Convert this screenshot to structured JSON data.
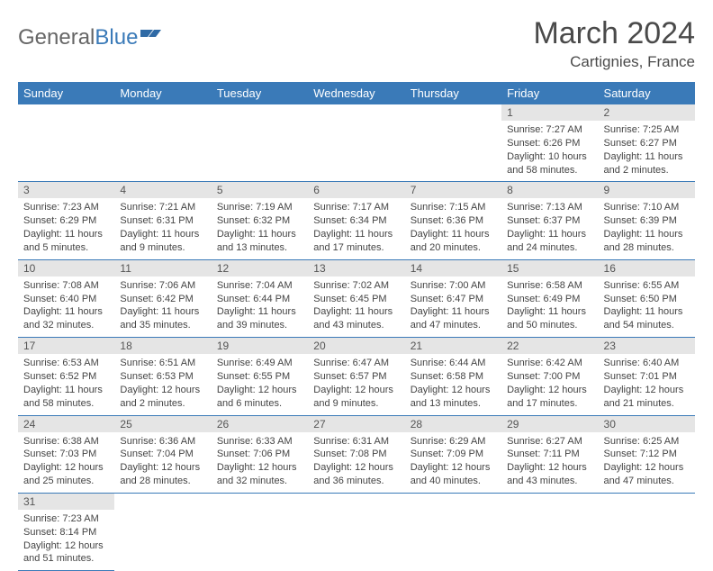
{
  "logo": {
    "general": "General",
    "blue": "Blue"
  },
  "title": "March 2024",
  "location": "Cartignies, France",
  "colors": {
    "header_bg": "#3a7ab8",
    "header_text": "#ffffff",
    "daynum_bg": "#e5e5e5",
    "border": "#3a7ab8",
    "text": "#444444"
  },
  "weekdays": [
    "Sunday",
    "Monday",
    "Tuesday",
    "Wednesday",
    "Thursday",
    "Friday",
    "Saturday"
  ],
  "weeks": [
    [
      null,
      null,
      null,
      null,
      null,
      {
        "n": "1",
        "sr": "Sunrise: 7:27 AM",
        "ss": "Sunset: 6:26 PM",
        "dl": "Daylight: 10 hours and 58 minutes."
      },
      {
        "n": "2",
        "sr": "Sunrise: 7:25 AM",
        "ss": "Sunset: 6:27 PM",
        "dl": "Daylight: 11 hours and 2 minutes."
      }
    ],
    [
      {
        "n": "3",
        "sr": "Sunrise: 7:23 AM",
        "ss": "Sunset: 6:29 PM",
        "dl": "Daylight: 11 hours and 5 minutes."
      },
      {
        "n": "4",
        "sr": "Sunrise: 7:21 AM",
        "ss": "Sunset: 6:31 PM",
        "dl": "Daylight: 11 hours and 9 minutes."
      },
      {
        "n": "5",
        "sr": "Sunrise: 7:19 AM",
        "ss": "Sunset: 6:32 PM",
        "dl": "Daylight: 11 hours and 13 minutes."
      },
      {
        "n": "6",
        "sr": "Sunrise: 7:17 AM",
        "ss": "Sunset: 6:34 PM",
        "dl": "Daylight: 11 hours and 17 minutes."
      },
      {
        "n": "7",
        "sr": "Sunrise: 7:15 AM",
        "ss": "Sunset: 6:36 PM",
        "dl": "Daylight: 11 hours and 20 minutes."
      },
      {
        "n": "8",
        "sr": "Sunrise: 7:13 AM",
        "ss": "Sunset: 6:37 PM",
        "dl": "Daylight: 11 hours and 24 minutes."
      },
      {
        "n": "9",
        "sr": "Sunrise: 7:10 AM",
        "ss": "Sunset: 6:39 PM",
        "dl": "Daylight: 11 hours and 28 minutes."
      }
    ],
    [
      {
        "n": "10",
        "sr": "Sunrise: 7:08 AM",
        "ss": "Sunset: 6:40 PM",
        "dl": "Daylight: 11 hours and 32 minutes."
      },
      {
        "n": "11",
        "sr": "Sunrise: 7:06 AM",
        "ss": "Sunset: 6:42 PM",
        "dl": "Daylight: 11 hours and 35 minutes."
      },
      {
        "n": "12",
        "sr": "Sunrise: 7:04 AM",
        "ss": "Sunset: 6:44 PM",
        "dl": "Daylight: 11 hours and 39 minutes."
      },
      {
        "n": "13",
        "sr": "Sunrise: 7:02 AM",
        "ss": "Sunset: 6:45 PM",
        "dl": "Daylight: 11 hours and 43 minutes."
      },
      {
        "n": "14",
        "sr": "Sunrise: 7:00 AM",
        "ss": "Sunset: 6:47 PM",
        "dl": "Daylight: 11 hours and 47 minutes."
      },
      {
        "n": "15",
        "sr": "Sunrise: 6:58 AM",
        "ss": "Sunset: 6:49 PM",
        "dl": "Daylight: 11 hours and 50 minutes."
      },
      {
        "n": "16",
        "sr": "Sunrise: 6:55 AM",
        "ss": "Sunset: 6:50 PM",
        "dl": "Daylight: 11 hours and 54 minutes."
      }
    ],
    [
      {
        "n": "17",
        "sr": "Sunrise: 6:53 AM",
        "ss": "Sunset: 6:52 PM",
        "dl": "Daylight: 11 hours and 58 minutes."
      },
      {
        "n": "18",
        "sr": "Sunrise: 6:51 AM",
        "ss": "Sunset: 6:53 PM",
        "dl": "Daylight: 12 hours and 2 minutes."
      },
      {
        "n": "19",
        "sr": "Sunrise: 6:49 AM",
        "ss": "Sunset: 6:55 PM",
        "dl": "Daylight: 12 hours and 6 minutes."
      },
      {
        "n": "20",
        "sr": "Sunrise: 6:47 AM",
        "ss": "Sunset: 6:57 PM",
        "dl": "Daylight: 12 hours and 9 minutes."
      },
      {
        "n": "21",
        "sr": "Sunrise: 6:44 AM",
        "ss": "Sunset: 6:58 PM",
        "dl": "Daylight: 12 hours and 13 minutes."
      },
      {
        "n": "22",
        "sr": "Sunrise: 6:42 AM",
        "ss": "Sunset: 7:00 PM",
        "dl": "Daylight: 12 hours and 17 minutes."
      },
      {
        "n": "23",
        "sr": "Sunrise: 6:40 AM",
        "ss": "Sunset: 7:01 PM",
        "dl": "Daylight: 12 hours and 21 minutes."
      }
    ],
    [
      {
        "n": "24",
        "sr": "Sunrise: 6:38 AM",
        "ss": "Sunset: 7:03 PM",
        "dl": "Daylight: 12 hours and 25 minutes."
      },
      {
        "n": "25",
        "sr": "Sunrise: 6:36 AM",
        "ss": "Sunset: 7:04 PM",
        "dl": "Daylight: 12 hours and 28 minutes."
      },
      {
        "n": "26",
        "sr": "Sunrise: 6:33 AM",
        "ss": "Sunset: 7:06 PM",
        "dl": "Daylight: 12 hours and 32 minutes."
      },
      {
        "n": "27",
        "sr": "Sunrise: 6:31 AM",
        "ss": "Sunset: 7:08 PM",
        "dl": "Daylight: 12 hours and 36 minutes."
      },
      {
        "n": "28",
        "sr": "Sunrise: 6:29 AM",
        "ss": "Sunset: 7:09 PM",
        "dl": "Daylight: 12 hours and 40 minutes."
      },
      {
        "n": "29",
        "sr": "Sunrise: 6:27 AM",
        "ss": "Sunset: 7:11 PM",
        "dl": "Daylight: 12 hours and 43 minutes."
      },
      {
        "n": "30",
        "sr": "Sunrise: 6:25 AM",
        "ss": "Sunset: 7:12 PM",
        "dl": "Daylight: 12 hours and 47 minutes."
      }
    ],
    [
      {
        "n": "31",
        "sr": "Sunrise: 7:23 AM",
        "ss": "Sunset: 8:14 PM",
        "dl": "Daylight: 12 hours and 51 minutes."
      },
      null,
      null,
      null,
      null,
      null,
      null
    ]
  ]
}
